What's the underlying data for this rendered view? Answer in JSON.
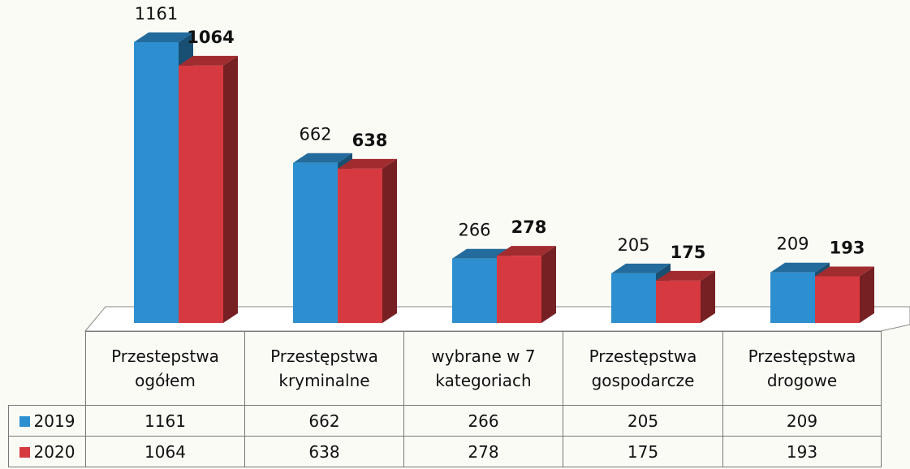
{
  "chart_data": {
    "type": "bar3d",
    "categories": [
      "Przestepstwa ogółem",
      "Przestępstwa kryminalne",
      "wybrane w 7 kategoriach",
      "Przestępstwa gospodarcze",
      "Przestępstwa drogowe"
    ],
    "series": [
      {
        "name": "2019",
        "color": "#2e8fd0",
        "values": [
          1161,
          662,
          266,
          205,
          209
        ]
      },
      {
        "name": "2020",
        "color": "#d63a40",
        "values": [
          1064,
          638,
          278,
          175,
          193
        ]
      }
    ]
  }
}
